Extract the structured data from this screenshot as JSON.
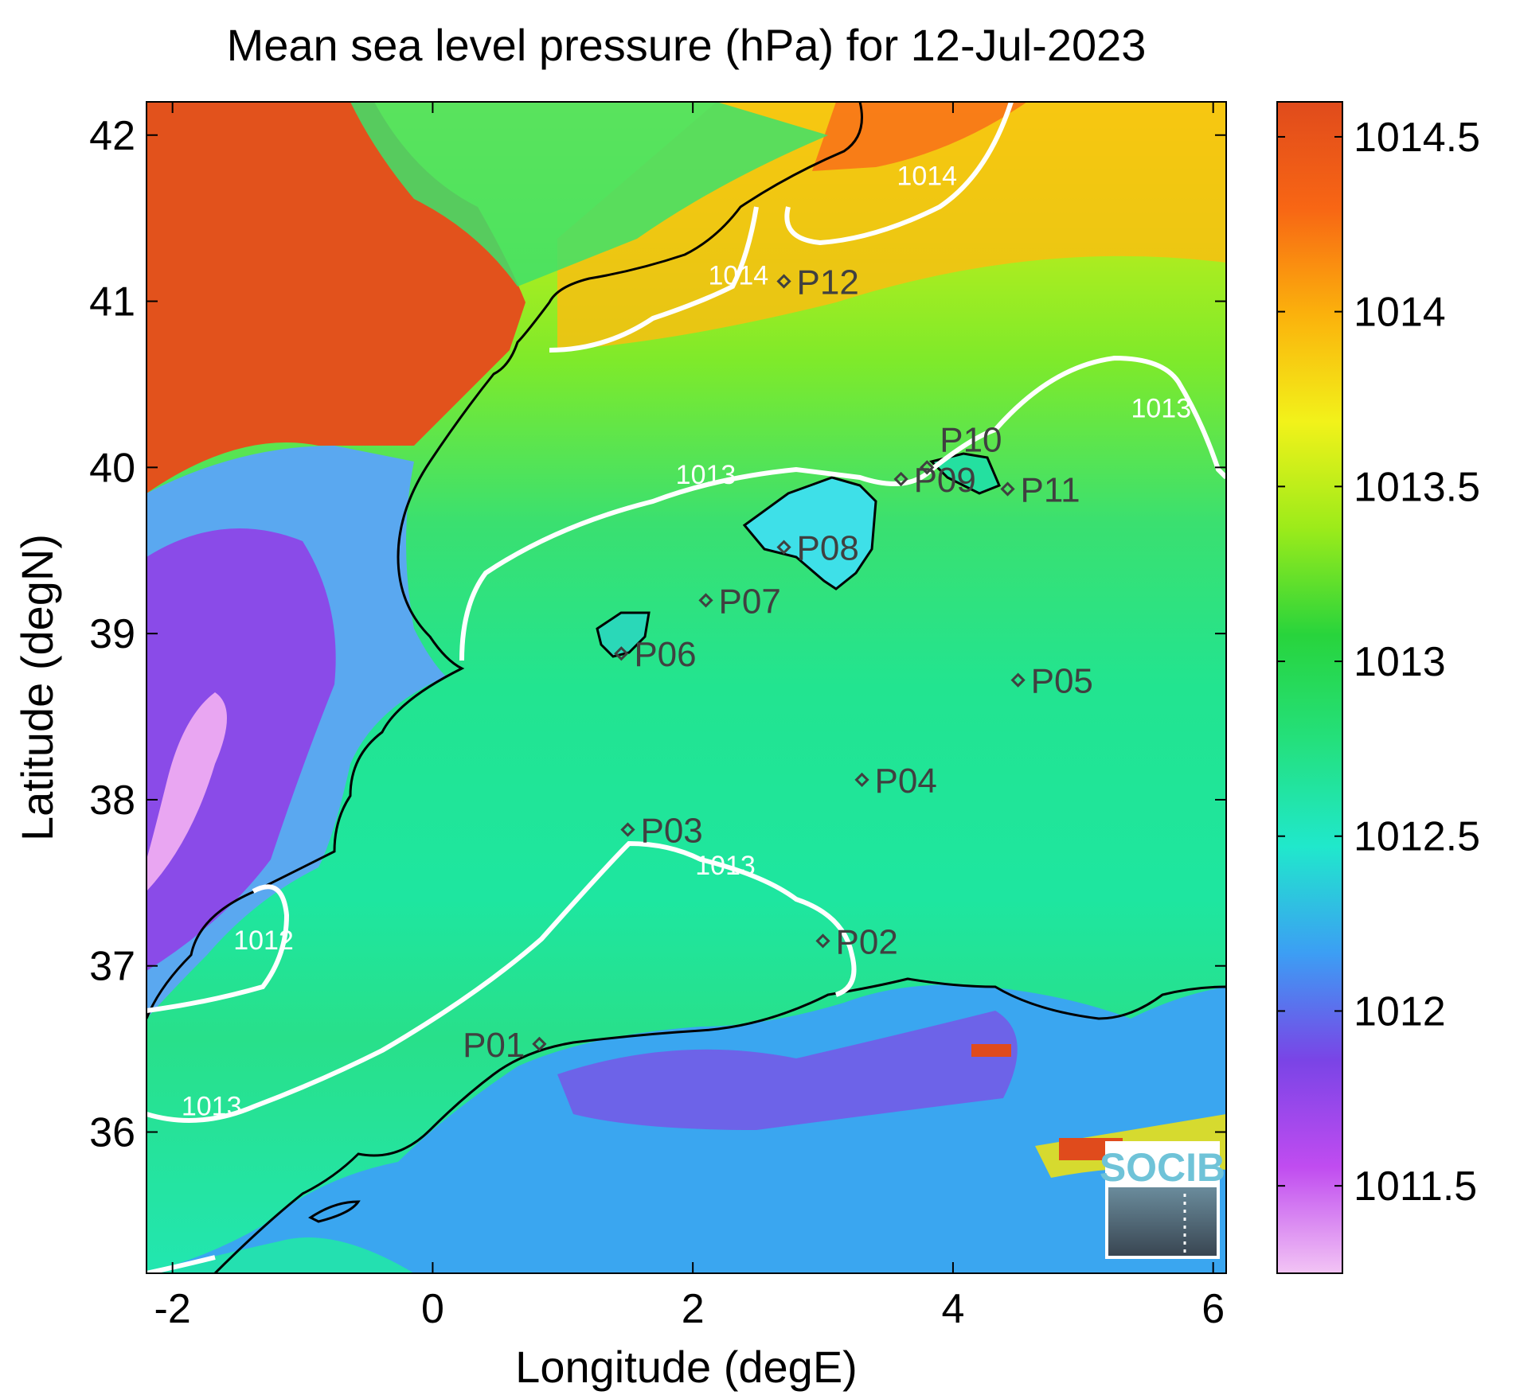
{
  "title": "Mean sea level pressure (hPa) for 12-Jul-2023",
  "axes": {
    "xlabel": "Longitude (degE)",
    "ylabel": "Latitude (degN)",
    "xlim": [
      -2.2,
      6.1
    ],
    "ylim": [
      35.15,
      42.2
    ],
    "xticks": [
      -2,
      0,
      2,
      4,
      6
    ],
    "xtick_labels": [
      "-2",
      "0",
      "2",
      "4",
      "6"
    ],
    "yticks": [
      36,
      37,
      38,
      39,
      40,
      41,
      42
    ],
    "ytick_labels": [
      "36",
      "37",
      "38",
      "39",
      "40",
      "41",
      "42"
    ]
  },
  "colorbar": {
    "range": [
      1011.25,
      1014.6
    ],
    "ticks": [
      1011.5,
      1012,
      1012.5,
      1013,
      1013.5,
      1014,
      1014.5
    ],
    "tick_labels": [
      "1011.5",
      "1012",
      "1012.5",
      "1013",
      "1013.5",
      "1014",
      "1014.5"
    ],
    "colors": [
      "#f2c4f4",
      "#c04cf0",
      "#7a44e6",
      "#3c9ef4",
      "#20e8cc",
      "#24e07c",
      "#28d43c",
      "#9ceb1a",
      "#f2f21a",
      "#fbb20c",
      "#f86614",
      "#e04b1c"
    ]
  },
  "contour_labels": [
    {
      "text": "1014",
      "lon": 2.35,
      "lat": 41.1
    },
    {
      "text": "1014",
      "lon": 3.8,
      "lat": 41.7
    },
    {
      "text": "1013",
      "lon": 2.1,
      "lat": 39.9
    },
    {
      "text": "1013",
      "lon": 5.6,
      "lat": 40.3
    },
    {
      "text": "1013",
      "lon": 2.25,
      "lat": 37.55
    },
    {
      "text": "1013",
      "lon": -1.7,
      "lat": 36.1
    },
    {
      "text": "1012",
      "lon": -1.3,
      "lat": 37.1
    }
  ],
  "points": [
    {
      "id": "P01",
      "lon": 0.82,
      "lat": 36.53
    },
    {
      "id": "P02",
      "lon": 3.0,
      "lat": 37.15
    },
    {
      "id": "P03",
      "lon": 1.5,
      "lat": 37.82
    },
    {
      "id": "P04",
      "lon": 3.3,
      "lat": 38.12
    },
    {
      "id": "P05",
      "lon": 4.5,
      "lat": 38.72
    },
    {
      "id": "P06",
      "lon": 1.45,
      "lat": 38.88
    },
    {
      "id": "P07",
      "lon": 2.1,
      "lat": 39.2
    },
    {
      "id": "P08",
      "lon": 2.7,
      "lat": 39.52
    },
    {
      "id": "P09",
      "lon": 3.6,
      "lat": 39.93
    },
    {
      "id": "P10",
      "lon": 3.8,
      "lat": 40.0
    },
    {
      "id": "P11",
      "lon": 4.42,
      "lat": 39.87
    },
    {
      "id": "P12",
      "lon": 2.7,
      "lat": 41.12
    }
  ],
  "logo": {
    "text": "SOCIB"
  }
}
